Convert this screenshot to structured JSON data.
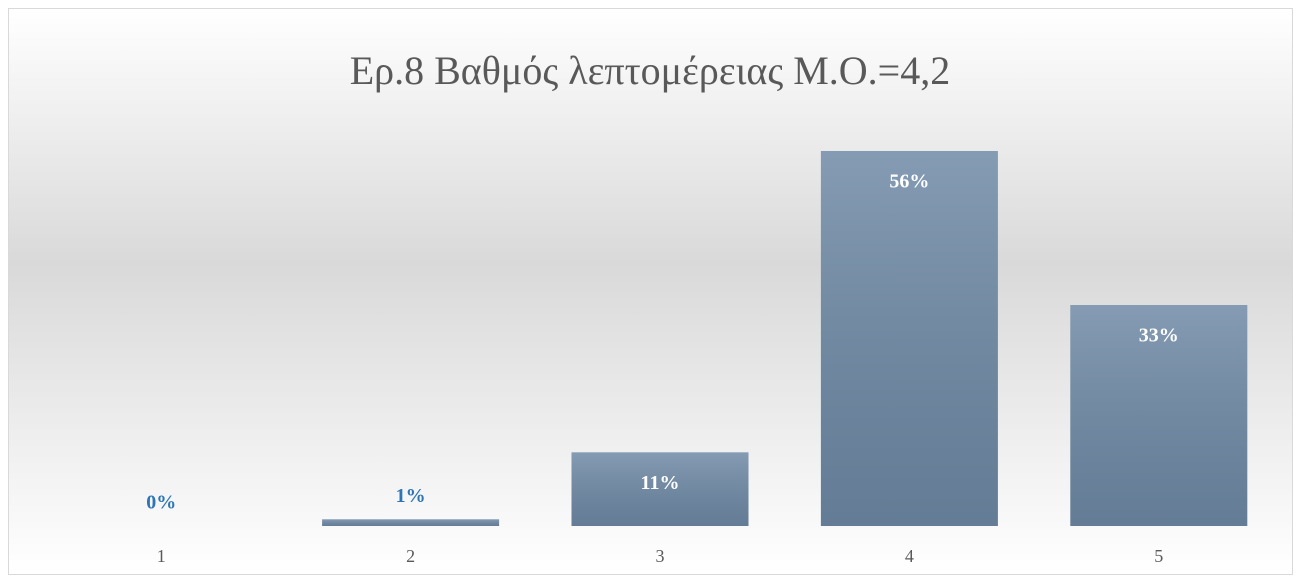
{
  "chart_data": {
    "type": "bar",
    "title": "Ερ.8 Βαθμός λεπτομέρειας Μ.Ο.=4,2",
    "categories": [
      "1",
      "2",
      "3",
      "4",
      "5"
    ],
    "values": [
      0,
      1,
      11,
      56,
      33
    ],
    "value_labels": [
      "0%",
      "1%",
      "11%",
      "56%",
      "33%"
    ],
    "color": "#6f8aa6"
  }
}
